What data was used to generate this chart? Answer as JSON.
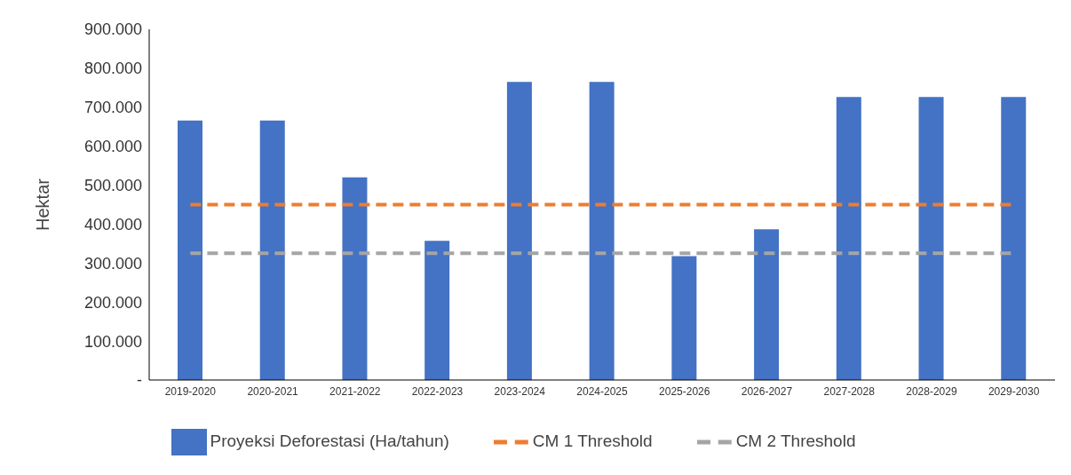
{
  "chart_data": {
    "type": "bar",
    "ylabel": "Hektar",
    "categories": [
      "2019-2020",
      "2020-2021",
      "2021-2022",
      "2022-2023",
      "2023-2024",
      "2024-2025",
      "2025-2026",
      "2026-2027",
      "2027-2028",
      "2028-2029",
      "2029-2030"
    ],
    "series": [
      {
        "name": "Proyeksi Deforestasi (Ha/tahun)",
        "color": "#4472c4",
        "values": [
          666000,
          666000,
          520000,
          357000,
          765000,
          765000,
          318000,
          387000,
          726000,
          726000,
          726000
        ]
      },
      {
        "name": "CM 1 Threshold",
        "type": "line",
        "color": "#ed7d31",
        "line_style": "dashed",
        "marker": "none",
        "values": [
          450000,
          450000,
          450000,
          450000,
          450000,
          450000,
          450000,
          450000,
          450000,
          450000,
          450000
        ]
      },
      {
        "name": "CM 2 Threshold",
        "type": "line",
        "color": "#a5a5a5",
        "line_style": "dashed",
        "marker": "none",
        "values": [
          325000,
          325000,
          325000,
          325000,
          325000,
          325000,
          325000,
          325000,
          325000,
          325000,
          325000
        ]
      }
    ],
    "ylim": [
      0,
      900000
    ],
    "yticks": [
      {
        "value": 0,
        "label": "-"
      },
      {
        "value": 100000,
        "label": "100.000"
      },
      {
        "value": 200000,
        "label": "200.000"
      },
      {
        "value": 300000,
        "label": "300.000"
      },
      {
        "value": 400000,
        "label": "400.000"
      },
      {
        "value": 500000,
        "label": "500.000"
      },
      {
        "value": 600000,
        "label": "600.000"
      },
      {
        "value": 700000,
        "label": "700.000"
      },
      {
        "value": 800000,
        "label": "800.000"
      },
      {
        "value": 900000,
        "label": "900.000"
      }
    ],
    "grid": false,
    "legend": "bottom"
  }
}
